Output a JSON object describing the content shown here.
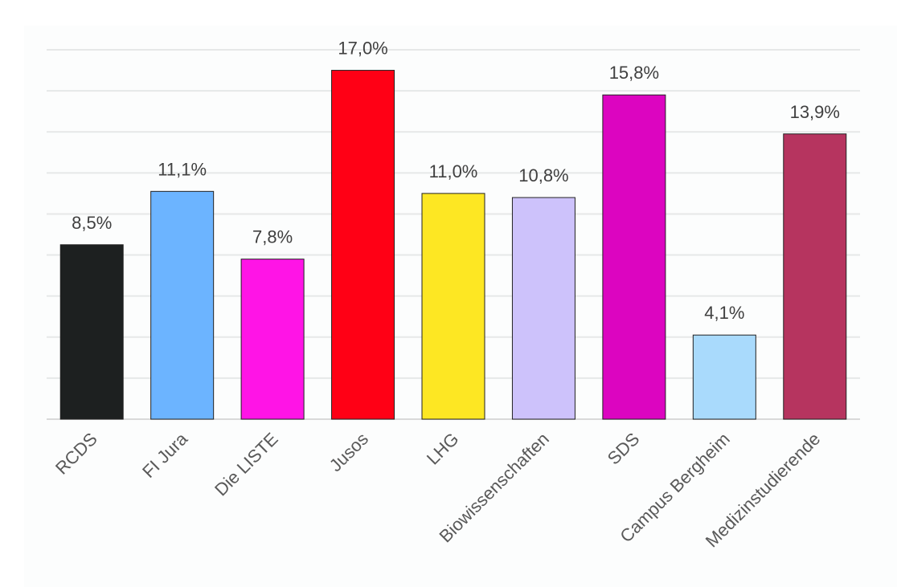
{
  "chart_data": {
    "type": "bar",
    "title": "",
    "xlabel": "",
    "ylabel": "",
    "ylim": [
      0,
      18
    ],
    "grid": true,
    "grid_step": 2,
    "categories": [
      "RCDS",
      "FI Jura",
      "Die LISTE",
      "Jusos",
      "LHG",
      "Biowissenschaften",
      "SDS",
      "Campus Bergheim",
      "Medizinstudierende"
    ],
    "values": [
      8.5,
      11.1,
      7.8,
      17.0,
      11.0,
      10.8,
      15.8,
      4.1,
      13.9
    ],
    "data_labels": [
      "8,5%",
      "11,1%",
      "7,8%",
      "17,0%",
      "11,0%",
      "10,8%",
      "15,8%",
      "4,1%",
      "13,9%"
    ],
    "colors": [
      "#1d2020",
      "#6cb4ff",
      "#ff14e6",
      "#ff0015",
      "#fde723",
      "#cdc2fb",
      "#dc05c0",
      "#a9dafc",
      "#b6345f"
    ]
  }
}
